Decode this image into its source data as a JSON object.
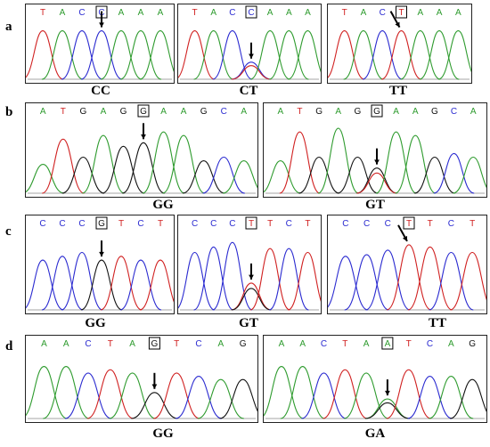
{
  "rows": [
    {
      "label": "a",
      "panels": [
        {
          "bases": [
            "T",
            "A",
            "C",
            "C",
            "A",
            "A",
            "A"
          ],
          "boxed": 3,
          "genotype": "CC"
        },
        {
          "bases": [
            "T",
            "A",
            "C",
            "C",
            "A",
            "A",
            "A"
          ],
          "boxed": 3,
          "genotype": "CT"
        },
        {
          "bases": [
            "T",
            "A",
            "C",
            "T",
            "A",
            "A",
            "A"
          ],
          "boxed": 3,
          "genotype": "TT"
        }
      ]
    },
    {
      "label": "b",
      "panels": [
        {
          "bases": [
            "A",
            "T",
            "G",
            "A",
            "G",
            "G",
            "A",
            "A",
            "G",
            "C",
            "A"
          ],
          "boxed": 5,
          "genotype": "GG"
        },
        {
          "bases": [
            "A",
            "T",
            "G",
            "A",
            "G",
            "G",
            "A",
            "A",
            "G",
            "C",
            "A"
          ],
          "boxed": 5,
          "genotype": "GT"
        }
      ]
    },
    {
      "label": "c",
      "panels": [
        {
          "bases": [
            "C",
            "C",
            "C",
            "G",
            "T",
            "C",
            "T"
          ],
          "boxed": 3,
          "genotype": "GG"
        },
        {
          "bases": [
            "C",
            "C",
            "C",
            "T",
            "T",
            "C",
            "T"
          ],
          "boxed": 3,
          "genotype": "GT"
        },
        {
          "bases": [
            "C",
            "C",
            "C",
            "T",
            "T",
            "C",
            "T"
          ],
          "boxed": 3,
          "genotype": "TT"
        }
      ]
    },
    {
      "label": "d",
      "panels": [
        {
          "bases": [
            "A",
            "A",
            "C",
            "T",
            "A",
            "G",
            "T",
            "C",
            "A",
            "G"
          ],
          "boxed": 5,
          "genotype": "GG"
        },
        {
          "bases": [
            "A",
            "A",
            "C",
            "T",
            "A",
            "A",
            "T",
            "C",
            "A",
            "G"
          ],
          "boxed": 5,
          "genotype": "GA"
        }
      ]
    }
  ],
  "base_colors": {
    "A": "#2e9b2e",
    "C": "#2a2ad0",
    "G": "#111111",
    "T": "#d02020"
  }
}
